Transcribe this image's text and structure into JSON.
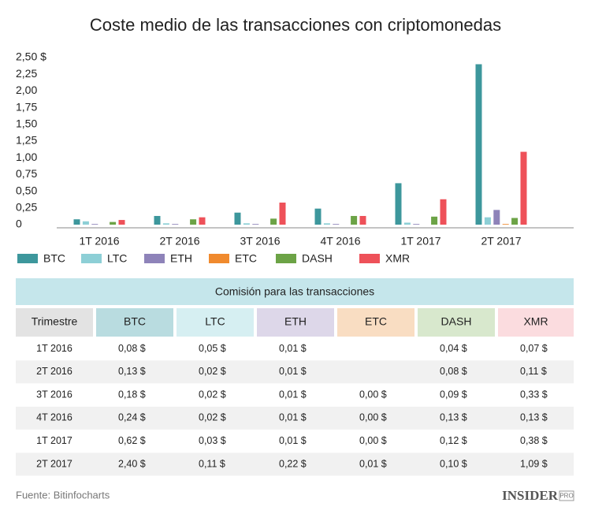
{
  "chart_data": {
    "type": "bar",
    "title": "Coste medio de las transacciones con criptomonedas",
    "categories": [
      "1T 2016",
      "2T 2016",
      "3T 2016",
      "4T 2016",
      "1T 2017",
      "2T 2017"
    ],
    "series": [
      {
        "name": "BTC",
        "color": "#3d979c",
        "header_color": "#b9dce0",
        "values": [
          0.08,
          0.13,
          0.18,
          0.24,
          0.62,
          2.4
        ],
        "value_labels": [
          "0,08 $",
          "0,13 $",
          "0,18 $",
          "0,24 $",
          "0,62 $",
          "2,40 $"
        ]
      },
      {
        "name": "LTC",
        "color": "#8dcfd6",
        "header_color": "#d6eff2",
        "values": [
          0.05,
          0.02,
          0.02,
          0.02,
          0.03,
          0.11
        ],
        "value_labels": [
          "0,05 $",
          "0,02 $",
          "0,02 $",
          "0,02 $",
          "0,03 $",
          "0,11 $"
        ]
      },
      {
        "name": "ETH",
        "color": "#8e83b9",
        "header_color": "#ddd7e9",
        "values": [
          0.01,
          0.01,
          0.01,
          0.01,
          0.01,
          0.22
        ],
        "value_labels": [
          "0,01 $",
          "0,01 $",
          "0,01 $",
          "0,01 $",
          "0,01 $",
          "0,22 $"
        ]
      },
      {
        "name": "ETC",
        "color": "#f08a2e",
        "header_color": "#f9ddc2",
        "values": [
          null,
          null,
          0.0,
          0.0,
          0.0,
          0.01
        ],
        "value_labels": [
          null,
          null,
          "0,00 $",
          "0,00 $",
          "0,00 $",
          "0,01 $"
        ]
      },
      {
        "name": "DASH",
        "color": "#6ca346",
        "header_color": "#d8e8cd",
        "values": [
          0.04,
          0.08,
          0.09,
          0.13,
          0.12,
          0.1
        ],
        "value_labels": [
          "0,04 $",
          "0,08 $",
          "0,09 $",
          "0,13 $",
          "0,12 $",
          "0,10 $"
        ]
      },
      {
        "name": "XMR",
        "color": "#ee5159",
        "header_color": "#fbdcdf",
        "values": [
          0.07,
          0.11,
          0.33,
          0.13,
          0.38,
          1.09
        ],
        "value_labels": [
          "0,07 $",
          "0,11 $",
          "0,33 $",
          "0,13 $",
          "0,38 $",
          "1,09 $"
        ]
      }
    ],
    "ylim": [
      0,
      2.5
    ],
    "yticks": [
      0,
      {
        "value": 0.25,
        "label": "0,25"
      },
      {
        "value": 0.5,
        "label": "0,50"
      },
      {
        "value": 0.75,
        "label": "0,75"
      },
      {
        "value": 1,
        "label": "1,00"
      },
      {
        "value": 1.25,
        "label": "1,25"
      },
      {
        "value": 1.5,
        "label": "1,50"
      },
      {
        "value": 1.75,
        "label": "1,75"
      },
      {
        "value": 2,
        "label": "2,00"
      },
      {
        "value": 2.25,
        "label": "2,25"
      },
      {
        "value": 2.5,
        "label": "2,50 $"
      }
    ],
    "grid": false,
    "legend": "bottom-left",
    "table": {
      "title": "Comisión para las transacciones",
      "first_header": "Trimestre"
    },
    "source": "Fuente: Bitinfocharts",
    "logo": {
      "name": "INSIDER",
      "badge": "PRO"
    }
  }
}
